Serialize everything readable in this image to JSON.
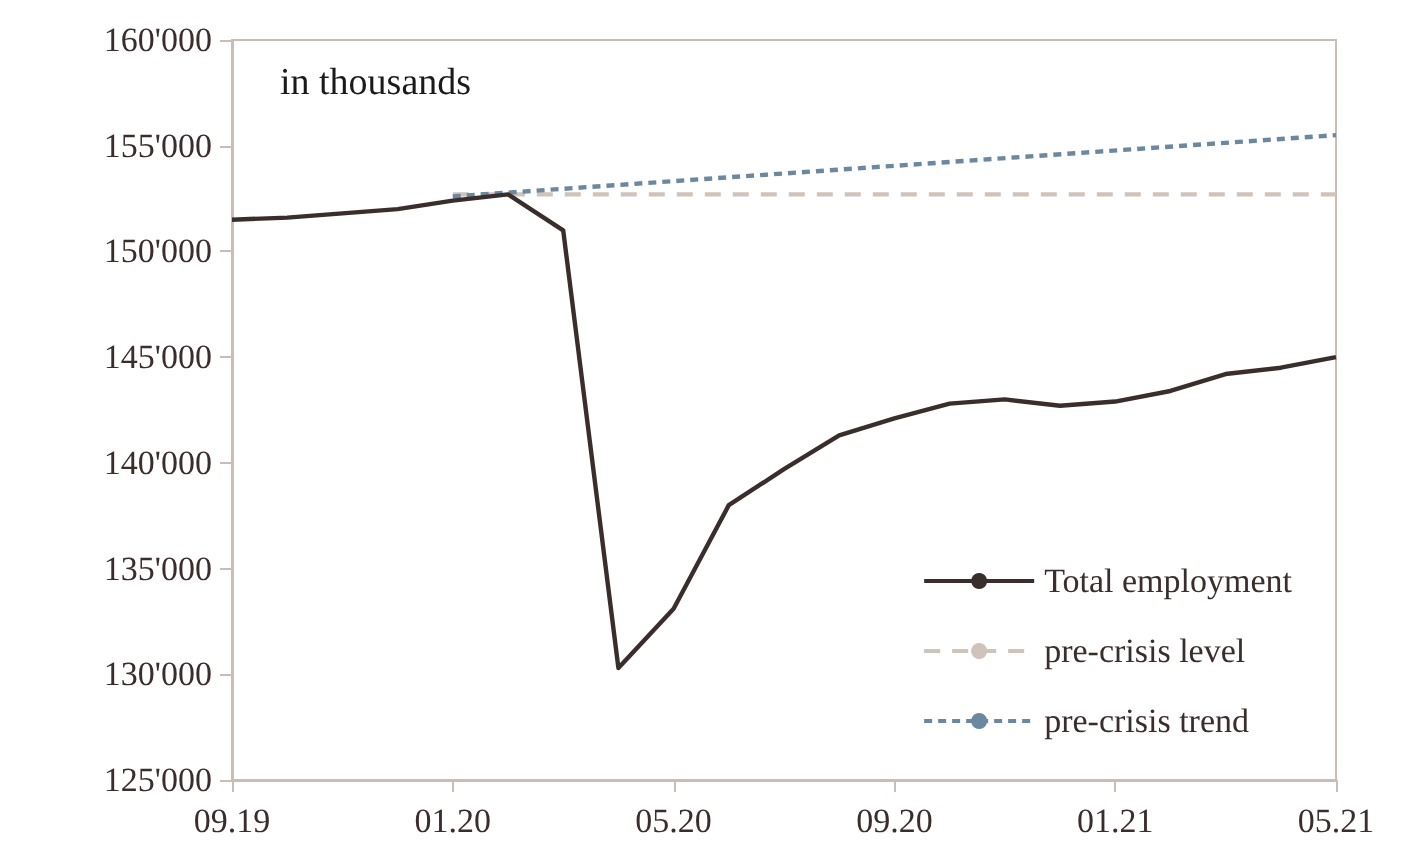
{
  "chart_data": {
    "type": "line",
    "categories": [
      "09.19",
      null,
      null,
      null,
      "01.20",
      null,
      null,
      null,
      "05.20",
      null,
      null,
      null,
      "09.20",
      null,
      null,
      null,
      "01.21",
      null,
      null,
      null,
      "05.21"
    ],
    "series": [
      {
        "name": "Total employment",
        "color": "#3a2e2c",
        "line_style": "solid",
        "values": [
          151500,
          151600,
          151800,
          152000,
          152400,
          152700,
          151000,
          130300,
          133100,
          138000,
          139700,
          141300,
          142100,
          142800,
          143000,
          142700,
          142900,
          143400,
          144200,
          144500,
          145000
        ]
      },
      {
        "name": "pre-crisis level",
        "color": "#cfc3bb",
        "line_style": "dashed",
        "x": [
          "01.20",
          "05.21"
        ],
        "values": [
          152700,
          152700
        ]
      },
      {
        "name": "pre-crisis trend",
        "color": "#6a88a0",
        "line_style": "dotted",
        "x": [
          "01.20",
          "05.21"
        ],
        "values": [
          152600,
          155500
        ]
      }
    ],
    "ylim": [
      125000,
      160000
    ],
    "yticks": [
      {
        "value": 125000,
        "label": "125'000"
      },
      {
        "value": 130000,
        "label": "130'000"
      },
      {
        "value": 135000,
        "label": "135'000"
      },
      {
        "value": 140000,
        "label": "140'000"
      },
      {
        "value": 145000,
        "label": "145'000"
      },
      {
        "value": 150000,
        "label": "150'000"
      },
      {
        "value": 155000,
        "label": "155'000"
      },
      {
        "value": 160000,
        "label": "160'000"
      }
    ],
    "annotations": [
      "in thousands"
    ],
    "legend": "bottom right",
    "grid": false,
    "marker": "none"
  }
}
